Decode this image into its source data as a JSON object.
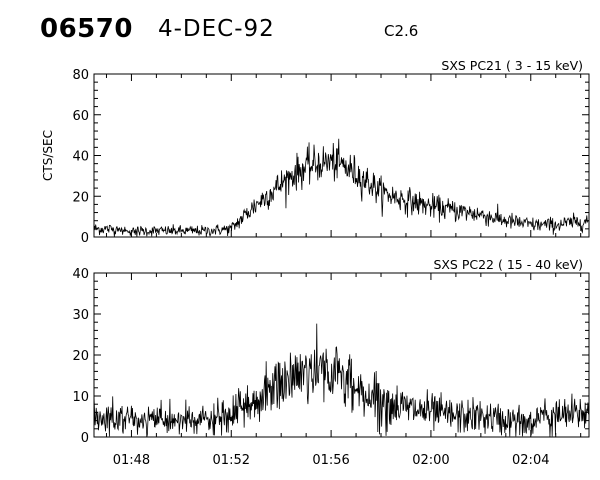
{
  "header": {
    "event_id": "06570",
    "date": "4-DEC-92",
    "flare_class": "C2.6"
  },
  "chart_data": [
    {
      "type": "line",
      "title": "SXS PC21  (  3 - 15 keV)",
      "ylabel": "CTS/SEC",
      "xlabel": "",
      "x_range": [
        "01:46:30",
        "02:06:20"
      ],
      "ylim": [
        0,
        80
      ],
      "yticks": [
        0,
        20,
        40,
        60,
        80
      ],
      "xticks": [
        "01:48",
        "01:52",
        "01:56",
        "02:00",
        "02:04"
      ],
      "xtick_labels_shown": false,
      "series": [
        {
          "time": [
            "01:46:30",
            "01:47:00",
            "01:48:00",
            "01:49:00",
            "01:50:00",
            "01:51:00",
            "01:52:00",
            "01:52:30",
            "01:53:00",
            "01:53:30",
            "01:54:00",
            "01:54:30",
            "01:55:00",
            "01:55:30",
            "01:56:00",
            "01:56:30",
            "01:57:00",
            "01:57:30",
            "01:58:00",
            "01:59:00",
            "02:00:00",
            "02:01:00",
            "02:02:00",
            "02:03:00",
            "02:04:00",
            "02:05:00",
            "02:06:20"
          ],
          "values": [
            4,
            4,
            3,
            3,
            3,
            3,
            4,
            10,
            16,
            21,
            26,
            31,
            34,
            36,
            37,
            35,
            31,
            27,
            22,
            18,
            15,
            13,
            11,
            8,
            6,
            6,
            8
          ]
        }
      ]
    },
    {
      "type": "line",
      "title": "SXS PC22  ( 15 - 40 keV)",
      "ylabel": "",
      "xlabel": "",
      "x_range": [
        "01:46:30",
        "02:06:20"
      ],
      "ylim": [
        0,
        40
      ],
      "yticks": [
        0,
        10,
        20,
        30,
        40
      ],
      "xticks": [
        "01:48",
        "01:52",
        "01:56",
        "02:00",
        "02:04"
      ],
      "xtick_labels_shown": true,
      "series": [
        {
          "time": [
            "01:46:30",
            "01:47:00",
            "01:48:00",
            "01:49:00",
            "01:50:00",
            "01:51:00",
            "01:52:00",
            "01:52:30",
            "01:53:00",
            "01:53:30",
            "01:54:00",
            "01:54:30",
            "01:55:00",
            "01:55:30",
            "01:56:00",
            "01:56:30",
            "01:57:00",
            "01:57:30",
            "01:58:00",
            "01:59:00",
            "02:00:00",
            "02:01:00",
            "02:02:00",
            "02:03:00",
            "02:04:00",
            "02:05:00",
            "02:06:20"
          ],
          "values": [
            5,
            5,
            4,
            4,
            4,
            4,
            5,
            7,
            9,
            11,
            13,
            15,
            16,
            17,
            16,
            14,
            12,
            10,
            9,
            7,
            6,
            5,
            5,
            4,
            4,
            5,
            6
          ]
        }
      ]
    }
  ]
}
